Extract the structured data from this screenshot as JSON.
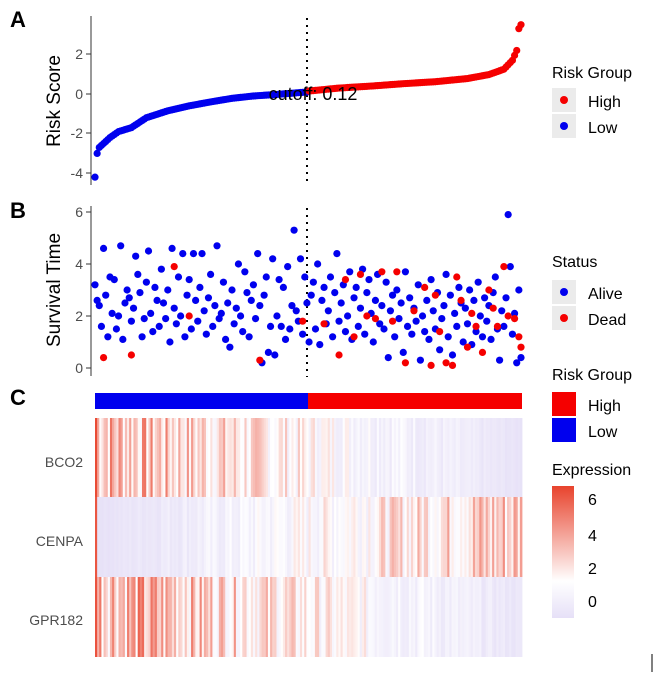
{
  "panels": {
    "a": {
      "letter": "A",
      "ylabel": "Risk Score",
      "yticks": [
        "2",
        "0",
        "-2",
        "-4"
      ],
      "cutoff_label": "cutoff: 0.12"
    },
    "b": {
      "letter": "B",
      "ylabel": "Survival Time",
      "yticks": [
        "6",
        "4",
        "2",
        "0"
      ]
    },
    "c": {
      "letter": "C",
      "genes": [
        "BCO2",
        "CENPA",
        "GPR182"
      ]
    }
  },
  "legends": {
    "risk_group_a": {
      "title": "Risk Group",
      "items": [
        "High",
        "Low"
      ]
    },
    "status": {
      "title": "Status",
      "items": [
        "Alive",
        "Dead"
      ]
    },
    "risk_group_c": {
      "title": "Risk Group",
      "items": [
        "High",
        "Low"
      ]
    },
    "expression": {
      "title": "Expression",
      "ticks": [
        "6",
        "4",
        "2",
        "0"
      ]
    }
  },
  "colors": {
    "high": "#f50000",
    "low": "#0000ee",
    "alive": "#0000ee",
    "dead": "#f50000",
    "heat_low": "#e6e0f7",
    "heat_mid": "#ffffff",
    "heat_high": "#e8432d",
    "legend_key_bg": "#ebebeb"
  },
  "chart_data": [
    {
      "type": "scatter",
      "name": "risk-score",
      "title": "",
      "xlabel": "",
      "ylabel": "Risk Score",
      "n_samples": 200,
      "ylim": [
        -4.3,
        3.6
      ],
      "yticks": [
        2,
        0,
        -2,
        -4
      ],
      "cutoff_value": 0.12,
      "cutoff_index": 100,
      "groups": {
        "low": "samples 1-100",
        "high": "samples 101-200"
      },
      "risk_score_anchors": [
        [
          1,
          -4.2
        ],
        [
          2,
          -3.0
        ],
        [
          3,
          -2.7
        ],
        [
          5,
          -2.5
        ],
        [
          8,
          -2.2
        ],
        [
          12,
          -1.9
        ],
        [
          18,
          -1.7
        ],
        [
          25,
          -1.2
        ],
        [
          35,
          -0.85
        ],
        [
          45,
          -0.6
        ],
        [
          55,
          -0.4
        ],
        [
          65,
          -0.22
        ],
        [
          75,
          -0.1
        ],
        [
          85,
          -0.03
        ],
        [
          100,
          0.1
        ],
        [
          101,
          0.15
        ],
        [
          115,
          0.3
        ],
        [
          130,
          0.4
        ],
        [
          145,
          0.52
        ],
        [
          160,
          0.62
        ],
        [
          175,
          0.78
        ],
        [
          185,
          0.98
        ],
        [
          192,
          1.25
        ],
        [
          196,
          1.7
        ],
        [
          198,
          2.2
        ],
        [
          199,
          3.3
        ],
        [
          200,
          3.5
        ]
      ]
    },
    {
      "type": "scatter",
      "name": "survival-time",
      "ylabel": "Survival Time",
      "ylim": [
        0,
        6.2
      ],
      "yticks": [
        6,
        4,
        2,
        0
      ],
      "series": [
        {
          "name": "Alive",
          "points": [
            [
              1,
              3.2
            ],
            [
              2,
              2.6
            ],
            [
              3,
              2.4
            ],
            [
              4,
              1.6
            ],
            [
              5,
              4.6
            ],
            [
              6,
              2.8
            ],
            [
              7,
              1.2
            ],
            [
              8,
              3.5
            ],
            [
              9,
              2.1
            ],
            [
              10,
              3.4
            ],
            [
              11,
              1.5
            ],
            [
              12,
              2.0
            ],
            [
              13,
              4.7
            ],
            [
              14,
              1.1
            ],
            [
              15,
              2.5
            ],
            [
              16,
              3.0
            ],
            [
              17,
              2.7
            ],
            [
              18,
              1.8
            ],
            [
              19,
              2.3
            ],
            [
              20,
              4.3
            ],
            [
              21,
              3.6
            ],
            [
              22,
              2.9
            ],
            [
              23,
              1.2
            ],
            [
              24,
              1.9
            ],
            [
              25,
              3.3
            ],
            [
              26,
              4.5
            ],
            [
              27,
              2.1
            ],
            [
              28,
              1.4
            ],
            [
              29,
              3.1
            ],
            [
              30,
              2.6
            ],
            [
              31,
              1.6
            ],
            [
              32,
              3.8
            ],
            [
              33,
              2.5
            ],
            [
              34,
              1.9
            ],
            [
              35,
              3.0
            ],
            [
              36,
              1.0
            ],
            [
              37,
              4.6
            ],
            [
              38,
              2.3
            ],
            [
              39,
              1.7
            ],
            [
              40,
              3.5
            ],
            [
              41,
              2.0
            ],
            [
              42,
              4.4
            ],
            [
              43,
              1.2
            ],
            [
              44,
              2.8
            ],
            [
              45,
              3.4
            ],
            [
              46,
              1.5
            ],
            [
              47,
              4.4
            ],
            [
              48,
              2.6
            ],
            [
              49,
              1.8
            ],
            [
              50,
              3.1
            ],
            [
              51,
              4.4
            ],
            [
              52,
              2.2
            ],
            [
              53,
              1.3
            ],
            [
              54,
              2.7
            ],
            [
              55,
              3.6
            ],
            [
              56,
              1.6
            ],
            [
              57,
              2.4
            ],
            [
              58,
              4.7
            ],
            [
              59,
              1.9
            ],
            [
              60,
              2.1
            ],
            [
              61,
              3.3
            ],
            [
              62,
              1.1
            ],
            [
              63,
              2.5
            ],
            [
              64,
              0.8
            ],
            [
              65,
              3.0
            ],
            [
              66,
              1.7
            ],
            [
              67,
              2.3
            ],
            [
              68,
              4.0
            ],
            [
              69,
              2.0
            ],
            [
              70,
              1.4
            ],
            [
              71,
              3.7
            ],
            [
              72,
              2.9
            ],
            [
              73,
              1.2
            ],
            [
              74,
              2.6
            ],
            [
              75,
              3.2
            ],
            [
              76,
              1.9
            ],
            [
              77,
              4.4
            ],
            [
              78,
              2.4
            ],
            [
              79,
              0.2
            ],
            [
              80,
              2.8
            ],
            [
              81,
              3.5
            ],
            [
              82,
              0.6
            ],
            [
              83,
              1.6
            ],
            [
              84,
              4.2
            ],
            [
              85,
              0.5
            ],
            [
              86,
              2.0
            ],
            [
              87,
              3.4
            ],
            [
              88,
              1.6
            ],
            [
              89,
              3.1
            ],
            [
              90,
              1.1
            ],
            [
              91,
              3.9
            ],
            [
              92,
              1.5
            ],
            [
              93,
              2.4
            ],
            [
              94,
              5.3
            ],
            [
              95,
              2.2
            ],
            [
              96,
              1.8
            ],
            [
              97,
              4.2
            ],
            [
              98,
              1.3
            ],
            [
              99,
              3.5
            ],
            [
              100,
              2.5
            ],
            [
              101,
              1.0
            ],
            [
              102,
              2.8
            ],
            [
              103,
              3.3
            ],
            [
              104,
              1.5
            ],
            [
              105,
              4.0
            ],
            [
              106,
              0.9
            ],
            [
              107,
              2.6
            ],
            [
              108,
              3.1
            ],
            [
              109,
              1.7
            ],
            [
              110,
              2.2
            ],
            [
              111,
              3.5
            ],
            [
              112,
              1.2
            ],
            [
              113,
              2.9
            ],
            [
              114,
              4.4
            ],
            [
              115,
              1.8
            ],
            [
              116,
              2.5
            ],
            [
              117,
              3.2
            ],
            [
              118,
              1.4
            ],
            [
              119,
              2.0
            ],
            [
              120,
              3.7
            ],
            [
              121,
              1.1
            ],
            [
              122,
              2.7
            ],
            [
              123,
              3.1
            ],
            [
              124,
              1.6
            ],
            [
              125,
              2.3
            ],
            [
              126,
              3.8
            ],
            [
              127,
              1.3
            ],
            [
              128,
              2.9
            ],
            [
              129,
              3.4
            ],
            [
              130,
              2.1
            ],
            [
              131,
              1.0
            ],
            [
              132,
              2.6
            ],
            [
              133,
              3.6
            ],
            [
              134,
              1.7
            ],
            [
              135,
              2.4
            ],
            [
              136,
              1.5
            ],
            [
              137,
              3.3
            ],
            [
              138,
              0.4
            ],
            [
              139,
              2.2
            ],
            [
              140,
              2.8
            ],
            [
              141,
              1.2
            ],
            [
              142,
              3.0
            ],
            [
              143,
              1.9
            ],
            [
              144,
              2.5
            ],
            [
              145,
              0.6
            ],
            [
              146,
              3.7
            ],
            [
              147,
              1.6
            ],
            [
              148,
              2.7
            ],
            [
              149,
              1.3
            ],
            [
              150,
              2.3
            ],
            [
              151,
              1.8
            ],
            [
              152,
              3.2
            ],
            [
              153,
              0.3
            ],
            [
              154,
              2.0
            ],
            [
              155,
              1.4
            ],
            [
              156,
              2.6
            ],
            [
              157,
              1.1
            ],
            [
              158,
              3.4
            ],
            [
              159,
              2.2
            ],
            [
              160,
              1.5
            ],
            [
              161,
              2.9
            ],
            [
              162,
              0.7
            ],
            [
              163,
              1.9
            ],
            [
              164,
              2.4
            ],
            [
              165,
              3.6
            ],
            [
              166,
              1.2
            ],
            [
              167,
              2.8
            ],
            [
              168,
              0.5
            ],
            [
              169,
              2.1
            ],
            [
              170,
              1.6
            ],
            [
              171,
              3.1
            ],
            [
              172,
              2.5
            ],
            [
              173,
              1.0
            ],
            [
              174,
              2.3
            ],
            [
              175,
              1.7
            ],
            [
              176,
              3.0
            ],
            [
              177,
              0.9
            ],
            [
              178,
              2.6
            ],
            [
              179,
              1.4
            ],
            [
              180,
              3.3
            ],
            [
              181,
              2.0
            ],
            [
              182,
              1.2
            ],
            [
              183,
              2.7
            ],
            [
              184,
              1.8
            ],
            [
              185,
              2.4
            ],
            [
              186,
              1.1
            ],
            [
              187,
              2.9
            ],
            [
              188,
              3.5
            ],
            [
              189,
              1.5
            ],
            [
              190,
              0.3
            ],
            [
              191,
              2.2
            ],
            [
              192,
              1.6
            ],
            [
              193,
              2.7
            ],
            [
              194,
              5.9
            ],
            [
              195,
              3.9
            ],
            [
              196,
              1.3
            ],
            [
              197,
              2.1
            ],
            [
              198,
              0.2
            ],
            [
              199,
              3.0
            ],
            [
              200,
              0.4
            ]
          ]
        },
        {
          "name": "Dead",
          "points": [
            [
              5,
              0.4
            ],
            [
              18,
              0.5
            ],
            [
              38,
              3.9
            ],
            [
              45,
              2.0
            ],
            [
              78,
              0.3
            ],
            [
              98,
              1.8
            ],
            [
              108,
              1.7
            ],
            [
              115,
              0.5
            ],
            [
              118,
              3.4
            ],
            [
              122,
              1.2
            ],
            [
              125,
              3.6
            ],
            [
              128,
              2.0
            ],
            [
              132,
              1.9
            ],
            [
              135,
              3.7
            ],
            [
              140,
              1.8
            ],
            [
              142,
              3.7
            ],
            [
              146,
              0.2
            ],
            [
              150,
              2.2
            ],
            [
              155,
              3.1
            ],
            [
              158,
              0.1
            ],
            [
              160,
              2.8
            ],
            [
              162,
              1.4
            ],
            [
              165,
              0.2
            ],
            [
              168,
              0.1
            ],
            [
              170,
              3.5
            ],
            [
              172,
              2.6
            ],
            [
              175,
              0.8
            ],
            [
              177,
              2.1
            ],
            [
              179,
              1.6
            ],
            [
              182,
              0.6
            ],
            [
              185,
              3.0
            ],
            [
              187,
              2.3
            ],
            [
              189,
              1.6
            ],
            [
              192,
              3.9
            ],
            [
              194,
              2.0
            ],
            [
              197,
              1.9
            ],
            [
              199,
              1.2
            ],
            [
              200,
              0.8
            ]
          ]
        }
      ]
    },
    {
      "type": "heatmap",
      "name": "gene-expression",
      "genes": [
        "BCO2",
        "CENPA",
        "GPR182"
      ],
      "n_samples": 200,
      "scale": {
        "min": 0,
        "max": 7,
        "ticks": [
          6,
          4,
          2,
          0
        ]
      },
      "annotation": {
        "title": "Risk Group",
        "low_samples": [
          1,
          100
        ],
        "high_samples": [
          101,
          200
        ]
      },
      "gene_trends": {
        "BCO2": {
          "mean_at_first_sample": 4.5,
          "mean_at_last_sample": 0.2,
          "max": 6.8
        },
        "CENPA": {
          "mean_at_first_sample": 0.1,
          "mean_at_last_sample": 4.0,
          "max": 6.5
        },
        "GPR182": {
          "mean_at_first_sample": 4.8,
          "mean_at_last_sample": 0.4,
          "max": 6.6
        }
      }
    }
  ]
}
